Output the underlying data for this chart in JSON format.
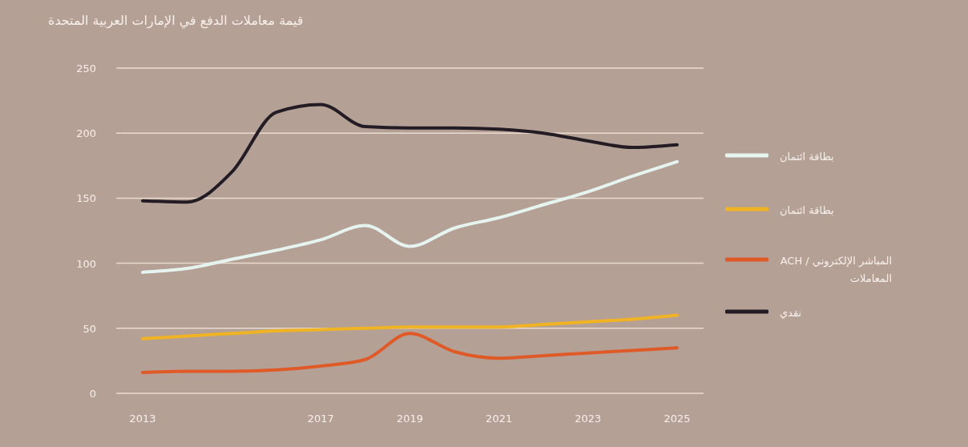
{
  "chart_data": {
    "type": "line",
    "title": "قيمة معاملات الدفع في الإمارات العربية المتحدة",
    "categories": [
      "2013",
      null,
      null,
      null,
      "2017",
      null,
      "2019",
      null,
      "2021",
      null,
      "2023",
      null,
      "2025"
    ],
    "ylim": [
      0,
      250
    ],
    "yticks": [
      0,
      50,
      100,
      150,
      200,
      250
    ],
    "grid": "y",
    "legend": "right",
    "series": [
      {
        "name": "بطاقة ائتمان",
        "color": "#e6f4f0",
        "values": [
          93,
          96,
          103,
          110,
          118,
          129,
          113,
          127,
          135,
          145,
          155,
          167,
          178
        ]
      },
      {
        "name": "بطاقة ائتمان",
        "color": "#f0b323",
        "values": [
          42,
          44,
          46,
          48,
          49,
          50,
          51,
          51,
          51,
          53,
          55,
          57,
          60
        ]
      },
      {
        "name": "المباشر الإلكتروني / ACH المعاملات",
        "color": "#e05a28",
        "values": [
          16,
          17,
          17,
          18,
          21,
          26,
          46,
          32,
          27,
          29,
          31,
          33,
          35
        ]
      },
      {
        "name": "نقدي",
        "color": "#231c24",
        "values": [
          148,
          147,
          170,
          216,
          222,
          205,
          204,
          204,
          203,
          200,
          194,
          189,
          191
        ]
      }
    ]
  }
}
